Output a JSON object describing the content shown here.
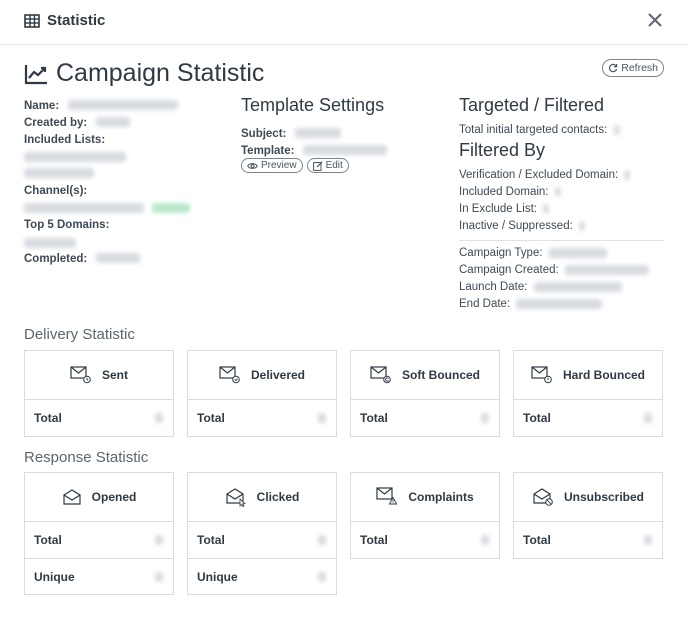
{
  "header": {
    "title": "Statistic",
    "close_icon": "close-icon"
  },
  "page": {
    "title": "Campaign Statistic",
    "refresh_label": "Refresh"
  },
  "left": {
    "name_label": "Name:",
    "created_by_label": "Created by:",
    "included_lists_label": "Included Lists:",
    "channels_label": "Channel(s):",
    "top_domains_label": "Top 5 Domains:",
    "completed_label": "Completed:"
  },
  "template": {
    "title": "Template Settings",
    "subject_label": "Subject:",
    "template_label": "Template:",
    "preview_label": "Preview",
    "edit_label": "Edit"
  },
  "targeted": {
    "title": "Targeted / Filtered",
    "total_label": "Total initial targeted contacts:",
    "filtered_title": "Filtered By",
    "verification_label": "Verification / Excluded Domain:",
    "included_domain_label": "Included Domain:",
    "in_exclude_label": "In Exclude List:",
    "inactive_label": "Inactive / Suppressed:",
    "campaign_type_label": "Campaign Type:",
    "campaign_created_label": "Campaign Created:",
    "launch_date_label": "Launch Date:",
    "end_date_label": "End Date:"
  },
  "delivery": {
    "title": "Delivery Statistic",
    "cards": [
      {
        "name": "Sent",
        "icon": "mail-clock-icon",
        "rows": [
          "Total"
        ]
      },
      {
        "name": "Delivered",
        "icon": "mail-check-icon",
        "rows": [
          "Total"
        ]
      },
      {
        "name": "Soft Bounced",
        "icon": "mail-soft-bounce-icon",
        "rows": [
          "Total"
        ]
      },
      {
        "name": "Hard Bounced",
        "icon": "mail-hard-bounce-icon",
        "rows": [
          "Total"
        ]
      }
    ]
  },
  "response": {
    "title": "Response Statistic",
    "cards": [
      {
        "name": "Opened",
        "icon": "mail-open-icon",
        "rows": [
          "Total",
          "Unique"
        ]
      },
      {
        "name": "Clicked",
        "icon": "mail-click-icon",
        "rows": [
          "Total",
          "Unique"
        ]
      },
      {
        "name": "Complaints",
        "icon": "mail-warning-icon",
        "rows": [
          "Total"
        ]
      },
      {
        "name": "Unsubscribed",
        "icon": "mail-unsubscribe-icon",
        "rows": [
          "Total"
        ]
      }
    ]
  },
  "colors": {
    "text": "#2f3a45",
    "border": "#d8dce0",
    "blur": "#d7dbe0",
    "channel_badge": "#b9e8cc"
  }
}
